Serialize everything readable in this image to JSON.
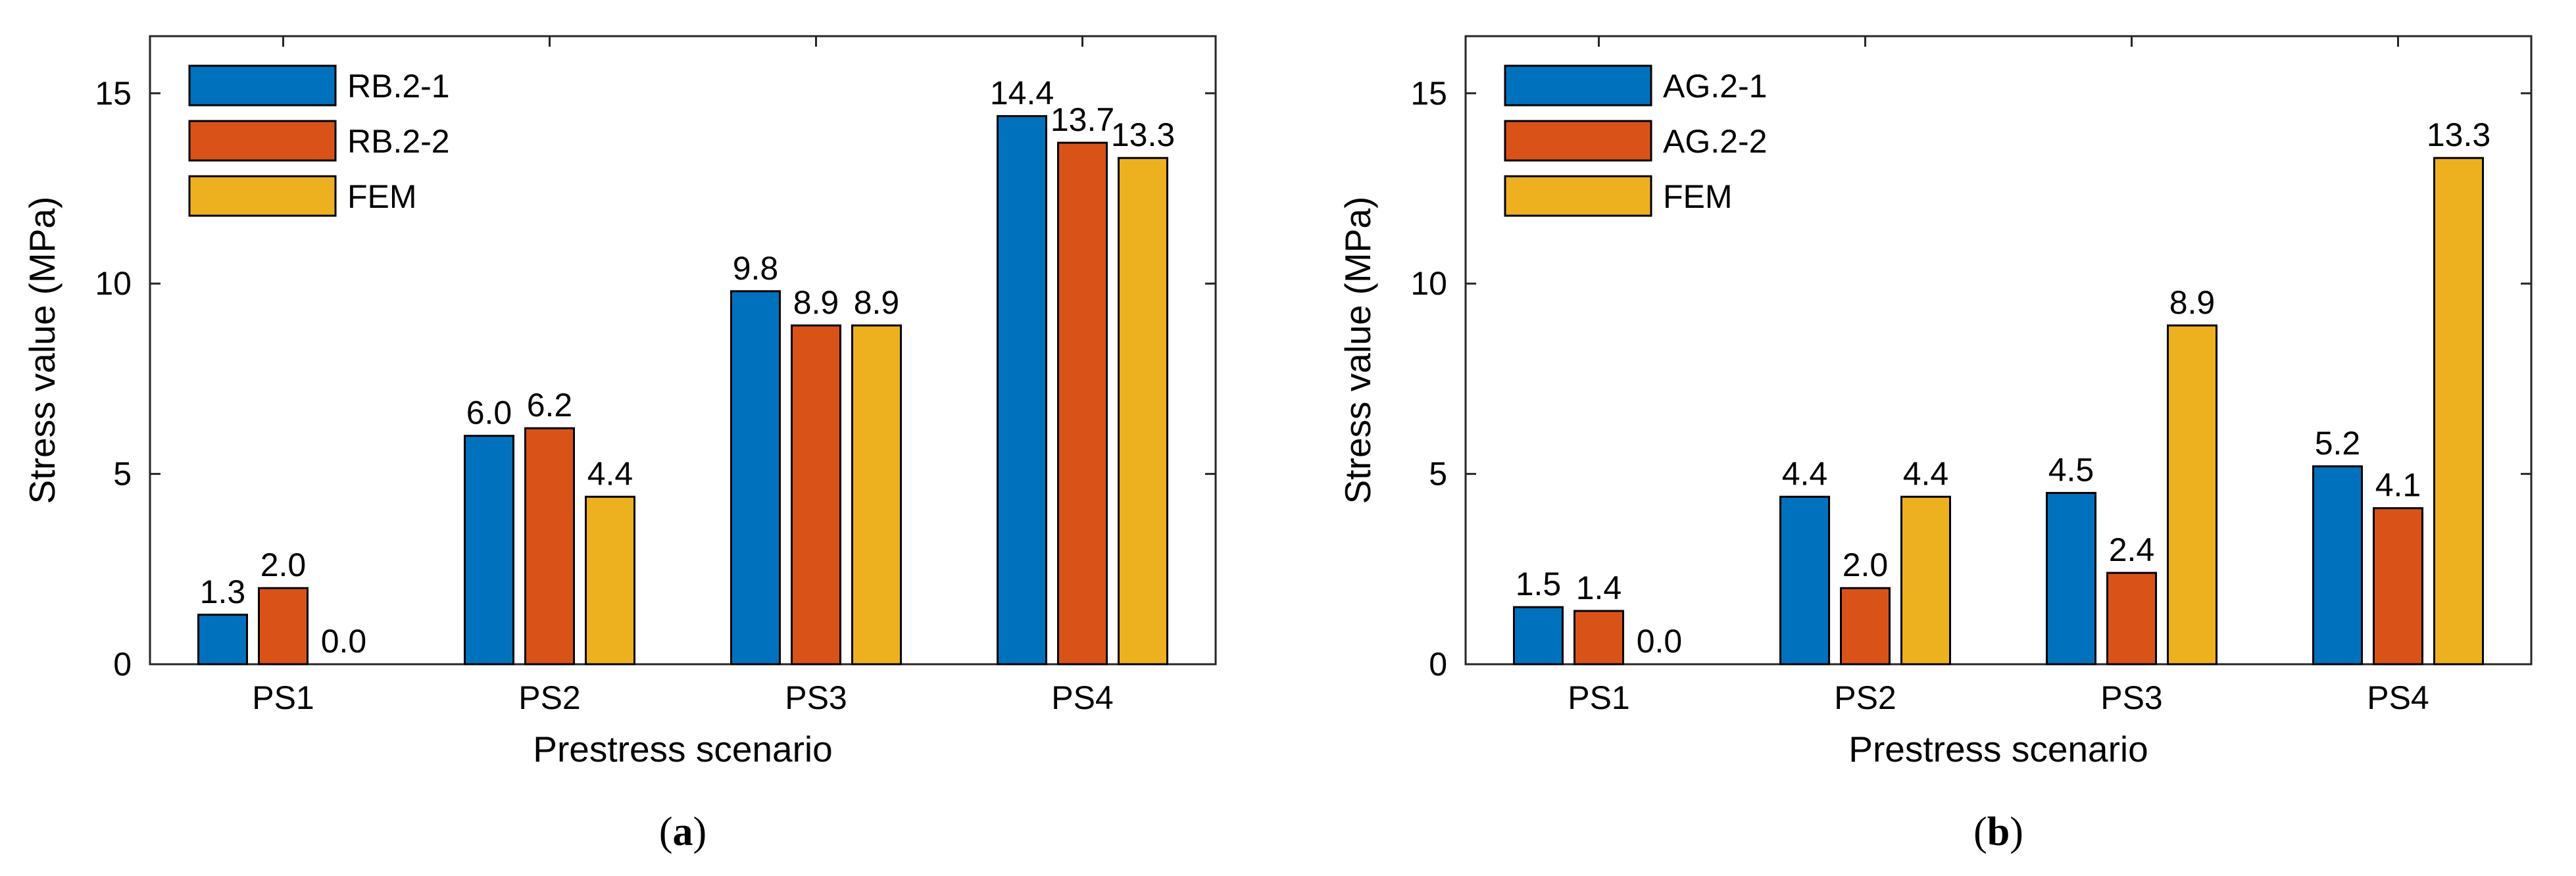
{
  "chart_data": [
    {
      "type": "bar",
      "panel_label": "(a)",
      "panel_letter": "a",
      "categories": [
        "PS1",
        "PS2",
        "PS3",
        "PS4"
      ],
      "series": [
        {
          "name": "RB.2-1",
          "values": [
            1.3,
            6.0,
            9.8,
            14.4
          ],
          "labels": [
            "1.3",
            "6.0",
            "9.8",
            "14.4"
          ],
          "color": "#0072BD"
        },
        {
          "name": "RB.2-2",
          "values": [
            2.0,
            6.2,
            8.9,
            13.7
          ],
          "labels": [
            "2.0",
            "6.2",
            "8.9",
            "13.7"
          ],
          "color": "#D95319"
        },
        {
          "name": "FEM",
          "values": [
            0.0,
            4.4,
            8.9,
            13.3
          ],
          "labels": [
            "0.0",
            "4.4",
            "8.9",
            "13.3"
          ],
          "color": "#EDB120"
        }
      ],
      "xlabel": "Prestress scenario",
      "ylabel": "Stress value (MPa)",
      "ylim": [
        0,
        16.5
      ],
      "yticks": [
        0,
        5,
        10,
        15
      ],
      "ytick_labels": [
        "0",
        "5",
        "10",
        "15"
      ],
      "legend": "top-left",
      "grid": false
    },
    {
      "type": "bar",
      "panel_label": "(b)",
      "panel_letter": "b",
      "categories": [
        "PS1",
        "PS2",
        "PS3",
        "PS4"
      ],
      "series": [
        {
          "name": "AG.2-1",
          "values": [
            1.5,
            4.4,
            4.5,
            5.2
          ],
          "labels": [
            "1.5",
            "4.4",
            "4.5",
            "5.2"
          ],
          "color": "#0072BD"
        },
        {
          "name": "AG.2-2",
          "values": [
            1.4,
            2.0,
            2.4,
            4.1
          ],
          "labels": [
            "1.4",
            "2.0",
            "2.4",
            "4.1"
          ],
          "color": "#D95319"
        },
        {
          "name": "FEM",
          "values": [
            0.0,
            4.4,
            8.9,
            13.3
          ],
          "labels": [
            "0.0",
            "4.4",
            "8.9",
            "13.3"
          ],
          "color": "#EDB120"
        }
      ],
      "xlabel": "Prestress scenario",
      "ylabel": "Stress value (MPa)",
      "ylim": [
        0,
        16.5
      ],
      "yticks": [
        0,
        5,
        10,
        15
      ],
      "ytick_labels": [
        "0",
        "5",
        "10",
        "15"
      ],
      "legend": "top-left",
      "grid": false
    }
  ]
}
